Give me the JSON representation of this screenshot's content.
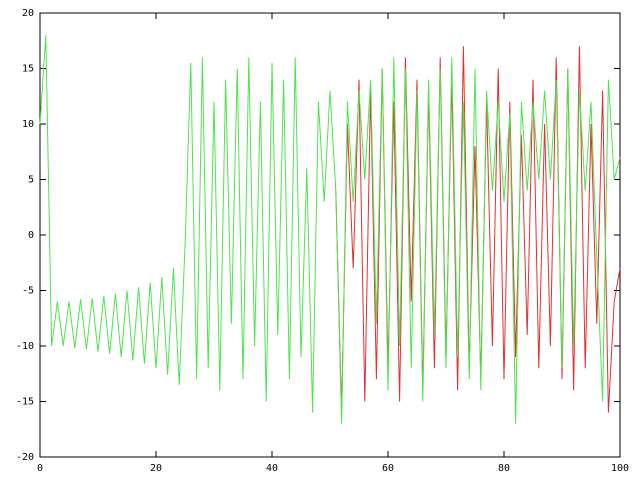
{
  "chart_data": {
    "type": "line",
    "x": [
      0,
      1,
      2,
      3,
      4,
      5,
      6,
      7,
      8,
      9,
      10,
      11,
      12,
      13,
      14,
      15,
      16,
      17,
      18,
      19,
      20,
      21,
      22,
      23,
      24,
      25,
      26,
      27,
      28,
      29,
      30,
      31,
      32,
      33,
      34,
      35,
      36,
      37,
      38,
      39,
      40,
      41,
      42,
      43,
      44,
      45,
      46,
      47,
      48,
      49,
      50,
      51,
      52,
      53,
      54,
      55,
      56,
      57,
      58,
      59,
      60,
      61,
      62,
      63,
      64,
      65,
      66,
      67,
      68,
      69,
      70,
      71,
      72,
      73,
      74,
      75,
      76,
      77,
      78,
      79,
      80,
      81,
      82,
      83,
      84,
      85,
      86,
      87,
      88,
      89,
      90,
      91,
      92,
      93,
      94,
      95,
      96,
      97,
      98,
      99,
      100
    ],
    "series": [
      {
        "color": "#e03030",
        "values": [
          null,
          null,
          null,
          null,
          null,
          null,
          null,
          null,
          null,
          null,
          null,
          null,
          null,
          null,
          null,
          null,
          null,
          null,
          null,
          null,
          null,
          null,
          null,
          null,
          null,
          null,
          null,
          null,
          null,
          null,
          null,
          null,
          null,
          null,
          null,
          null,
          null,
          null,
          null,
          null,
          null,
          null,
          null,
          null,
          null,
          null,
          null,
          null,
          null,
          null,
          null,
          4,
          -16,
          10,
          -3,
          14,
          -15,
          13,
          -13,
          15,
          -12,
          12,
          -15,
          16,
          -6,
          14,
          -14,
          13,
          -12,
          16,
          -11,
          14,
          -14,
          17,
          -12,
          8,
          -13,
          12,
          -10,
          15,
          -13,
          12,
          -11,
          9,
          -9,
          14,
          -12,
          10,
          -10,
          16,
          -13,
          15,
          -14,
          17,
          -12,
          10,
          -8,
          13,
          -16,
          -6,
          -3
        ]
      },
      {
        "color": "#4ee44e",
        "values": [
          10,
          18,
          -10,
          -6,
          -10,
          -6,
          -10.2,
          -5.8,
          -10.3,
          -5.7,
          -10.5,
          -5.5,
          -10.7,
          -5.3,
          -11,
          -5,
          -11.3,
          -4.7,
          -11.6,
          -4.3,
          -12,
          -3.8,
          -12.6,
          -3,
          -13.5,
          -1,
          15.5,
          -13,
          16,
          -12,
          12,
          -14,
          14,
          -8,
          15,
          -13,
          16,
          -10,
          12,
          -15,
          15.5,
          -9,
          14,
          -13,
          16,
          -11,
          6,
          -16,
          12,
          3,
          13,
          4,
          -17,
          12,
          3,
          13,
          5,
          14,
          -8,
          15,
          -14,
          16,
          -10,
          15,
          -12,
          13,
          -15,
          14,
          -9,
          15,
          -12,
          16,
          -11,
          12,
          -13,
          15,
          -14,
          13,
          4,
          12,
          3,
          11,
          -17,
          12,
          4,
          12,
          5,
          13,
          5,
          14,
          -12,
          15,
          -10,
          13,
          4,
          12,
          -2,
          -15,
          14,
          5,
          7
        ]
      }
    ],
    "xlim": [
      0,
      100
    ],
    "xticks": [
      0,
      20,
      40,
      60,
      80,
      100
    ],
    "ylim": [
      -20,
      20
    ],
    "yticks": [
      -20,
      -15,
      -10,
      -5,
      0,
      5,
      10,
      15,
      20
    ]
  }
}
